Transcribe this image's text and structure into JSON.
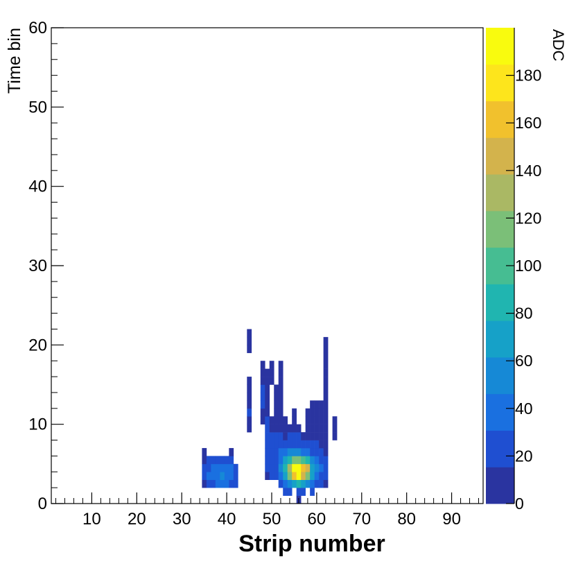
{
  "chart_data": {
    "type": "heatmap",
    "title": "",
    "xlabel": "Strip number",
    "ylabel": "Time bin",
    "zlabel": "ADC",
    "xlim": [
      1,
      97
    ],
    "ylim": [
      0,
      60
    ],
    "zlim": [
      0,
      200
    ],
    "x_ticks": [
      10,
      20,
      30,
      40,
      50,
      60,
      70,
      80,
      90
    ],
    "y_ticks": [
      0,
      10,
      20,
      30,
      40,
      50,
      60
    ],
    "z_ticks": [
      0,
      20,
      40,
      60,
      80,
      100,
      120,
      140,
      160,
      180
    ],
    "bin_width_x": 1,
    "bin_width_y": 1,
    "grid": false,
    "colorscale": [
      "#2a34a0",
      "#1f4fd1",
      "#1a70e0",
      "#1689d6",
      "#16a1c8",
      "#20b5b0",
      "#46bd92",
      "#7bbf78",
      "#aab864",
      "#d3b34c",
      "#f1c12d",
      "#fde51c",
      "#f9fb0e"
    ],
    "cells": [
      [
        35,
        2,
        15
      ],
      [
        35,
        3,
        20
      ],
      [
        35,
        4,
        18
      ],
      [
        35,
        5,
        14
      ],
      [
        35,
        6,
        10
      ],
      [
        36,
        2,
        25
      ],
      [
        36,
        3,
        35
      ],
      [
        36,
        4,
        30
      ],
      [
        36,
        5,
        20
      ],
      [
        37,
        2,
        30
      ],
      [
        37,
        3,
        40
      ],
      [
        37,
        4,
        35
      ],
      [
        37,
        5,
        25
      ],
      [
        38,
        2,
        35
      ],
      [
        38,
        3,
        45
      ],
      [
        38,
        4,
        40
      ],
      [
        38,
        5,
        25
      ],
      [
        39,
        2,
        40
      ],
      [
        39,
        3,
        55
      ],
      [
        39,
        4,
        45
      ],
      [
        39,
        5,
        25
      ],
      [
        40,
        2,
        35
      ],
      [
        40,
        3,
        45
      ],
      [
        40,
        4,
        40
      ],
      [
        40,
        5,
        30
      ],
      [
        41,
        2,
        30
      ],
      [
        41,
        3,
        40
      ],
      [
        41,
        4,
        35
      ],
      [
        41,
        5,
        20
      ],
      [
        41,
        6,
        12
      ],
      [
        42,
        2,
        20
      ],
      [
        42,
        3,
        25
      ],
      [
        42,
        4,
        20
      ],
      [
        45,
        9,
        12
      ],
      [
        45,
        10,
        15
      ],
      [
        45,
        11,
        18
      ],
      [
        45,
        12,
        15
      ],
      [
        45,
        13,
        10
      ],
      [
        45,
        14,
        12
      ],
      [
        45,
        15,
        10
      ],
      [
        45,
        19,
        12
      ],
      [
        45,
        20,
        15
      ],
      [
        45,
        21,
        10
      ],
      [
        48,
        10,
        12
      ],
      [
        48,
        11,
        15
      ],
      [
        48,
        12,
        18
      ],
      [
        48,
        13,
        20
      ],
      [
        48,
        14,
        18
      ],
      [
        48,
        15,
        15
      ],
      [
        48,
        16,
        12
      ],
      [
        48,
        17,
        10
      ],
      [
        49,
        3,
        15
      ],
      [
        49,
        4,
        20
      ],
      [
        49,
        5,
        25
      ],
      [
        49,
        6,
        25
      ],
      [
        49,
        7,
        30
      ],
      [
        49,
        8,
        25
      ],
      [
        49,
        9,
        20
      ],
      [
        49,
        10,
        20
      ],
      [
        49,
        11,
        15
      ],
      [
        49,
        12,
        12
      ],
      [
        49,
        13,
        10
      ],
      [
        49,
        14,
        12
      ],
      [
        49,
        15,
        15
      ],
      [
        49,
        16,
        12
      ],
      [
        50,
        3,
        20
      ],
      [
        50,
        4,
        25
      ],
      [
        50,
        5,
        30
      ],
      [
        50,
        6,
        30
      ],
      [
        50,
        7,
        25
      ],
      [
        50,
        8,
        20
      ],
      [
        50,
        9,
        15
      ],
      [
        50,
        10,
        12
      ],
      [
        50,
        15,
        10
      ],
      [
        50,
        16,
        12
      ],
      [
        50,
        17,
        10
      ],
      [
        51,
        3,
        25
      ],
      [
        51,
        4,
        30
      ],
      [
        51,
        5,
        25
      ],
      [
        51,
        6,
        30
      ],
      [
        51,
        7,
        25
      ],
      [
        51,
        8,
        20
      ],
      [
        51,
        9,
        15
      ],
      [
        51,
        10,
        15
      ],
      [
        51,
        11,
        12
      ],
      [
        51,
        12,
        10
      ],
      [
        51,
        13,
        12
      ],
      [
        51,
        14,
        10
      ],
      [
        52,
        2,
        20
      ],
      [
        52,
        3,
        40
      ],
      [
        52,
        4,
        55
      ],
      [
        52,
        5,
        45
      ],
      [
        52,
        6,
        35
      ],
      [
        52,
        7,
        25
      ],
      [
        52,
        8,
        20
      ],
      [
        52,
        9,
        15
      ],
      [
        52,
        10,
        12
      ],
      [
        52,
        11,
        12
      ],
      [
        52,
        12,
        15
      ],
      [
        52,
        13,
        12
      ],
      [
        52,
        14,
        10
      ],
      [
        52,
        15,
        12
      ],
      [
        52,
        16,
        10
      ],
      [
        52,
        17,
        12
      ],
      [
        53,
        1,
        20
      ],
      [
        53,
        2,
        45
      ],
      [
        53,
        3,
        70
      ],
      [
        53,
        4,
        85
      ],
      [
        53,
        5,
        65
      ],
      [
        53,
        6,
        40
      ],
      [
        53,
        7,
        25
      ],
      [
        53,
        8,
        15
      ],
      [
        53,
        9,
        12
      ],
      [
        53,
        10,
        10
      ],
      [
        54,
        1,
        25
      ],
      [
        54,
        2,
        60
      ],
      [
        54,
        3,
        110
      ],
      [
        54,
        4,
        135
      ],
      [
        54,
        5,
        90
      ],
      [
        54,
        6,
        50
      ],
      [
        54,
        7,
        30
      ],
      [
        54,
        8,
        20
      ],
      [
        54,
        9,
        15
      ],
      [
        55,
        2,
        70
      ],
      [
        55,
        3,
        165
      ],
      [
        55,
        4,
        185
      ],
      [
        55,
        5,
        110
      ],
      [
        55,
        6,
        55
      ],
      [
        55,
        7,
        30
      ],
      [
        55,
        8,
        20
      ],
      [
        55,
        9,
        15
      ],
      [
        55,
        10,
        12
      ],
      [
        55,
        11,
        10
      ],
      [
        56,
        0,
        10
      ],
      [
        56,
        1,
        30
      ],
      [
        56,
        2,
        80
      ],
      [
        56,
        3,
        195
      ],
      [
        56,
        4,
        190
      ],
      [
        56,
        5,
        120
      ],
      [
        56,
        6,
        60
      ],
      [
        56,
        7,
        30
      ],
      [
        56,
        8,
        20
      ],
      [
        56,
        9,
        15
      ],
      [
        57,
        1,
        25
      ],
      [
        57,
        2,
        70
      ],
      [
        57,
        3,
        150
      ],
      [
        57,
        4,
        160
      ],
      [
        57,
        5,
        95
      ],
      [
        57,
        6,
        45
      ],
      [
        57,
        7,
        25
      ],
      [
        57,
        8,
        15
      ],
      [
        58,
        2,
        55
      ],
      [
        58,
        3,
        120
      ],
      [
        58,
        4,
        140
      ],
      [
        58,
        5,
        80
      ],
      [
        58,
        6,
        40
      ],
      [
        58,
        7,
        20
      ],
      [
        58,
        8,
        12
      ],
      [
        58,
        9,
        15
      ],
      [
        58,
        10,
        12
      ],
      [
        58,
        11,
        10
      ],
      [
        59,
        1,
        20
      ],
      [
        59,
        2,
        40
      ],
      [
        59,
        3,
        65
      ],
      [
        59,
        4,
        75
      ],
      [
        59,
        5,
        50
      ],
      [
        59,
        6,
        30
      ],
      [
        59,
        7,
        20
      ],
      [
        59,
        8,
        15
      ],
      [
        59,
        9,
        12
      ],
      [
        59,
        10,
        15
      ],
      [
        59,
        11,
        12
      ],
      [
        59,
        12,
        10
      ],
      [
        60,
        2,
        30
      ],
      [
        60,
        3,
        45
      ],
      [
        60,
        4,
        55
      ],
      [
        60,
        5,
        40
      ],
      [
        60,
        6,
        25
      ],
      [
        60,
        7,
        20
      ],
      [
        60,
        8,
        15
      ],
      [
        60,
        9,
        12
      ],
      [
        60,
        10,
        15
      ],
      [
        60,
        11,
        12
      ],
      [
        60,
        12,
        10
      ],
      [
        61,
        2,
        20
      ],
      [
        61,
        3,
        30
      ],
      [
        61,
        4,
        35
      ],
      [
        61,
        5,
        25
      ],
      [
        61,
        6,
        20
      ],
      [
        61,
        7,
        15
      ],
      [
        61,
        8,
        12
      ],
      [
        61,
        9,
        10
      ],
      [
        61,
        10,
        12
      ],
      [
        61,
        11,
        10
      ],
      [
        61,
        12,
        12
      ],
      [
        62,
        2,
        15
      ],
      [
        62,
        3,
        20
      ],
      [
        62,
        4,
        25
      ],
      [
        62,
        5,
        20
      ],
      [
        62,
        6,
        15
      ],
      [
        62,
        7,
        12
      ],
      [
        62,
        8,
        10
      ],
      [
        62,
        9,
        12
      ],
      [
        62,
        10,
        10
      ],
      [
        62,
        11,
        12
      ],
      [
        62,
        12,
        10
      ],
      [
        62,
        13,
        12
      ],
      [
        62,
        14,
        10
      ],
      [
        62,
        15,
        12
      ],
      [
        62,
        16,
        10
      ],
      [
        62,
        17,
        12
      ],
      [
        62,
        18,
        10
      ],
      [
        62,
        19,
        12
      ],
      [
        62,
        20,
        10
      ],
      [
        64,
        8,
        10
      ],
      [
        64,
        9,
        12
      ],
      [
        64,
        10,
        15
      ]
    ]
  }
}
